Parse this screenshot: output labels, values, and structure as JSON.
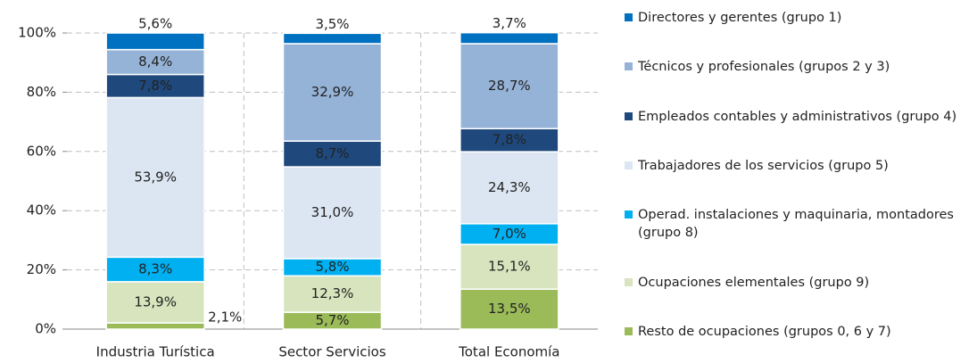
{
  "chart_data": {
    "type": "stacked_bar",
    "categories": [
      "Industria Turística",
      "Sector Servicios",
      "Total Economía"
    ],
    "series": [
      {
        "name": "Resto de ocupaciones (grupos 0, 6 y 7)",
        "color": "#9bbb59",
        "values": [
          2.1,
          5.7,
          13.5
        ],
        "value_labels": [
          "2,1%",
          "5,7%",
          "13,5%"
        ]
      },
      {
        "name": "Ocupaciones elementales (grupo 9)",
        "color": "#d7e4bd",
        "values": [
          13.9,
          12.3,
          15.1
        ],
        "value_labels": [
          "13,9%",
          "12,3%",
          "15,1%"
        ]
      },
      {
        "name": "Operad. instalaciones y maquinaria, montadores (grupo 8)",
        "color": "#00b0f0",
        "values": [
          8.3,
          5.8,
          7.0
        ],
        "value_labels": [
          "8,3%",
          "5,8%",
          "7,0%"
        ]
      },
      {
        "name": "Trabajadores de los servicios (grupo 5)",
        "color": "#dce6f2",
        "values": [
          53.9,
          31.0,
          24.3
        ],
        "value_labels": [
          "53,9%",
          "31,0%",
          "24,3%"
        ]
      },
      {
        "name": "Empleados contables y administrativos (grupo 4)",
        "color": "#1f497d",
        "values": [
          7.8,
          8.7,
          7.8
        ],
        "value_labels": [
          "7,8%",
          "8,7%",
          "7,8%"
        ]
      },
      {
        "name": "Técnicos y profesionales (grupos 2 y 3)",
        "color": "#95b3d7",
        "values": [
          8.4,
          32.9,
          28.7
        ],
        "value_labels": [
          "8,4%",
          "32,9%",
          "28,7%"
        ]
      },
      {
        "name": "Directores y gerentes (grupo 1)",
        "color": "#0070c0",
        "values": [
          5.6,
          3.5,
          3.7
        ],
        "value_labels": [
          "5,6%",
          "3,5%",
          "3,7%"
        ]
      }
    ],
    "ylim": [
      0,
      100
    ],
    "yticks": [
      {
        "value": 0,
        "label": "0%"
      },
      {
        "value": 20,
        "label": "20%"
      },
      {
        "value": 40,
        "label": "40%"
      },
      {
        "value": 60,
        "label": "60%"
      },
      {
        "value": 80,
        "label": "80%"
      },
      {
        "value": 100,
        "label": "100%"
      }
    ],
    "grid": true,
    "legend": "right"
  }
}
